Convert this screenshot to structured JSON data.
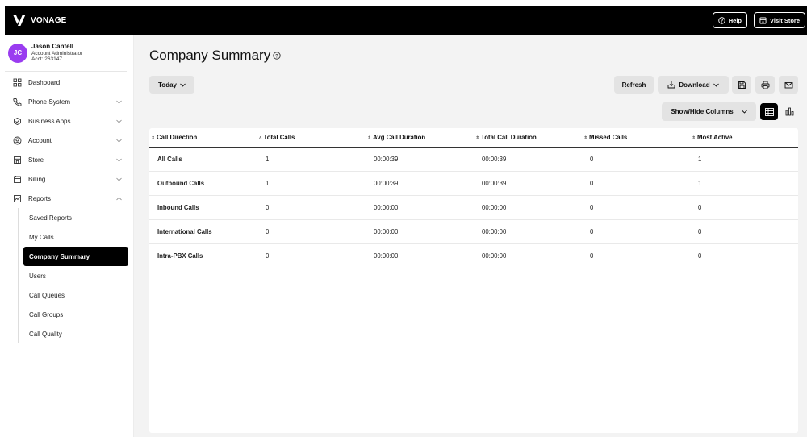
{
  "brand": {
    "name": "VONAGE"
  },
  "header": {
    "help_label": "Help",
    "store_label": "Visit Store"
  },
  "user": {
    "initials": "JC",
    "name": "Jason Cantell",
    "role": "Account Administrator",
    "acct": "Acct: 263147"
  },
  "sidebar": {
    "items": [
      {
        "label": "Dashboard",
        "icon": "grid-icon"
      },
      {
        "label": "Phone System",
        "icon": "phone-icon"
      },
      {
        "label": "Business Apps",
        "icon": "apps-icon"
      },
      {
        "label": "Account",
        "icon": "account-icon"
      },
      {
        "label": "Store",
        "icon": "store-icon"
      },
      {
        "label": "Billing",
        "icon": "billing-icon"
      },
      {
        "label": "Reports",
        "icon": "reports-icon"
      }
    ],
    "reports_sub": [
      "Saved Reports",
      "My Calls",
      "Company Summary",
      "Users",
      "Call Queues",
      "Call Groups",
      "Call Quality"
    ],
    "active_sub": "Company Summary"
  },
  "main": {
    "title": "Company Summary",
    "date_filter": "Today",
    "refresh_label": "Refresh",
    "download_label": "Download",
    "show_hide_label": "Show/Hide Columns"
  },
  "table": {
    "columns": [
      "Call Direction",
      "Total Calls",
      "Avg Call Duration",
      "Total Call Duration",
      "Missed Calls",
      "Most Active"
    ],
    "rows": [
      [
        "All Calls",
        "1",
        "00:00:39",
        "00:00:39",
        "0",
        "1"
      ],
      [
        "Outbound Calls",
        "1",
        "00:00:39",
        "00:00:39",
        "0",
        "1"
      ],
      [
        "Inbound Calls",
        "0",
        "00:00:00",
        "00:00:00",
        "0",
        "0"
      ],
      [
        "International Calls",
        "0",
        "00:00:00",
        "00:00:00",
        "0",
        "0"
      ],
      [
        "Intra-PBX Calls",
        "0",
        "00:00:00",
        "00:00:00",
        "0",
        "0"
      ]
    ]
  },
  "colors": {
    "accent": "#9a3cf0",
    "topbar": "#000000",
    "active_nav": "#000000"
  }
}
